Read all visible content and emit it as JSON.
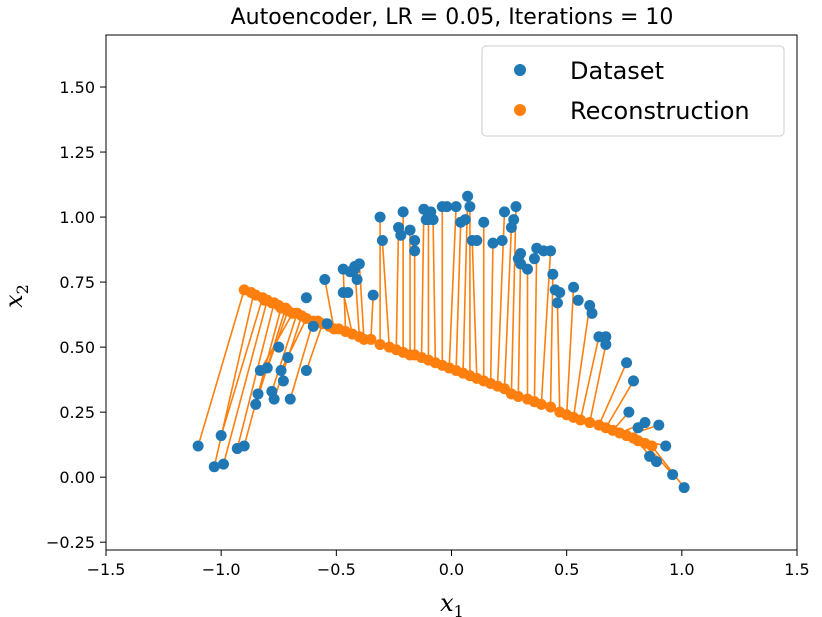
{
  "chart_data": {
    "type": "scatter",
    "title": "Autoencoder, LR = 0.05, Iterations = 10",
    "xlabel": "x",
    "xlabel_sub": "1",
    "ylabel": "x",
    "ylabel_sub": "2",
    "xlim": [
      -1.5,
      1.5
    ],
    "ylim": [
      -0.28,
      1.7
    ],
    "xticks": [
      -1.5,
      -1.0,
      -0.5,
      0.0,
      0.5,
      1.0,
      1.5
    ],
    "xtick_labels": [
      "−1.5",
      "−1.0",
      "−0.5",
      "0.0",
      "0.5",
      "1.0",
      "1.5"
    ],
    "yticks": [
      -0.25,
      0.0,
      0.25,
      0.5,
      0.75,
      1.0,
      1.25,
      1.5
    ],
    "ytick_labels": [
      "−0.25",
      "0.00",
      "0.25",
      "0.50",
      "0.75",
      "1.00",
      "1.25",
      "1.50"
    ],
    "grid": false,
    "legend_position": "top-right",
    "colors": {
      "dataset": "#1f77b4",
      "reconstruction": "#ff7f0e",
      "connector": "#ff7f0e"
    },
    "series": [
      {
        "name": "Dataset",
        "points": [
          [
            -1.1,
            0.12
          ],
          [
            -1.03,
            0.04
          ],
          [
            -1.0,
            0.16
          ],
          [
            -0.99,
            0.05
          ],
          [
            -0.93,
            0.11
          ],
          [
            -0.9,
            0.12
          ],
          [
            -0.85,
            0.28
          ],
          [
            -0.84,
            0.32
          ],
          [
            -0.83,
            0.41
          ],
          [
            -0.8,
            0.42
          ],
          [
            -0.78,
            0.33
          ],
          [
            -0.77,
            0.3
          ],
          [
            -0.75,
            0.5
          ],
          [
            -0.74,
            0.41
          ],
          [
            -0.73,
            0.37
          ],
          [
            -0.71,
            0.46
          ],
          [
            -0.7,
            0.3
          ],
          [
            -0.63,
            0.41
          ],
          [
            -0.63,
            0.69
          ],
          [
            -0.6,
            0.58
          ],
          [
            -0.55,
            0.76
          ],
          [
            -0.54,
            0.59
          ],
          [
            -0.47,
            0.8
          ],
          [
            -0.47,
            0.71
          ],
          [
            -0.45,
            0.71
          ],
          [
            -0.44,
            0.79
          ],
          [
            -0.42,
            0.81
          ],
          [
            -0.42,
            0.8
          ],
          [
            -0.41,
            0.76
          ],
          [
            -0.4,
            0.82
          ],
          [
            -0.34,
            0.7
          ],
          [
            -0.31,
            1.0
          ],
          [
            -0.3,
            0.91
          ],
          [
            -0.23,
            0.96
          ],
          [
            -0.22,
            0.93
          ],
          [
            -0.21,
            1.02
          ],
          [
            -0.18,
            0.95
          ],
          [
            -0.16,
            0.87
          ],
          [
            -0.16,
            0.91
          ],
          [
            -0.12,
            1.03
          ],
          [
            -0.11,
            0.99
          ],
          [
            -0.1,
            0.99
          ],
          [
            -0.09,
            1.02
          ],
          [
            -0.08,
            0.99
          ],
          [
            -0.04,
            1.04
          ],
          [
            -0.02,
            1.04
          ],
          [
            0.02,
            1.04
          ],
          [
            0.04,
            0.98
          ],
          [
            0.06,
            0.99
          ],
          [
            0.07,
            1.08
          ],
          [
            0.08,
            1.04
          ],
          [
            0.09,
            0.91
          ],
          [
            0.11,
            0.91
          ],
          [
            0.14,
            0.98
          ],
          [
            0.18,
            0.9
          ],
          [
            0.22,
            0.91
          ],
          [
            0.23,
            1.02
          ],
          [
            0.26,
            0.96
          ],
          [
            0.27,
            0.99
          ],
          [
            0.28,
            1.04
          ],
          [
            0.29,
            0.84
          ],
          [
            0.3,
            0.86
          ],
          [
            0.3,
            0.82
          ],
          [
            0.33,
            0.8
          ],
          [
            0.36,
            0.84
          ],
          [
            0.37,
            0.88
          ],
          [
            0.4,
            0.87
          ],
          [
            0.43,
            0.87
          ],
          [
            0.44,
            0.78
          ],
          [
            0.45,
            0.72
          ],
          [
            0.46,
            0.67
          ],
          [
            0.47,
            0.71
          ],
          [
            0.53,
            0.73
          ],
          [
            0.55,
            0.68
          ],
          [
            0.6,
            0.66
          ],
          [
            0.61,
            0.63
          ],
          [
            0.64,
            0.54
          ],
          [
            0.67,
            0.54
          ],
          [
            0.67,
            0.51
          ],
          [
            0.76,
            0.44
          ],
          [
            0.79,
            0.37
          ],
          [
            0.77,
            0.25
          ],
          [
            0.81,
            0.19
          ],
          [
            0.84,
            0.21
          ],
          [
            0.86,
            0.08
          ],
          [
            0.89,
            0.06
          ],
          [
            0.9,
            0.2
          ],
          [
            0.93,
            0.12
          ],
          [
            0.96,
            0.01
          ],
          [
            1.01,
            -0.04
          ]
        ]
      },
      {
        "name": "Reconstruction",
        "points": [
          [
            -0.9,
            0.72
          ],
          [
            -0.87,
            0.71
          ],
          [
            -0.85,
            0.7
          ],
          [
            -0.82,
            0.69
          ],
          [
            -0.81,
            0.68
          ],
          [
            -0.8,
            0.68
          ],
          [
            -0.78,
            0.67
          ],
          [
            -0.77,
            0.67
          ],
          [
            -0.75,
            0.66
          ],
          [
            -0.74,
            0.65
          ],
          [
            -0.72,
            0.65
          ],
          [
            -0.71,
            0.64
          ],
          [
            -0.69,
            0.63
          ],
          [
            -0.67,
            0.63
          ],
          [
            -0.65,
            0.62
          ],
          [
            -0.63,
            0.61
          ],
          [
            -0.6,
            0.6
          ],
          [
            -0.58,
            0.6
          ],
          [
            -0.56,
            0.59
          ],
          [
            -0.53,
            0.58
          ],
          [
            -0.51,
            0.57
          ],
          [
            -0.49,
            0.57
          ],
          [
            -0.46,
            0.56
          ],
          [
            -0.43,
            0.55
          ],
          [
            -0.4,
            0.54
          ],
          [
            -0.38,
            0.53
          ],
          [
            -0.35,
            0.53
          ],
          [
            -0.31,
            0.51
          ],
          [
            -0.27,
            0.5
          ],
          [
            -0.24,
            0.49
          ],
          [
            -0.21,
            0.48
          ],
          [
            -0.18,
            0.47
          ],
          [
            -0.16,
            0.47
          ],
          [
            -0.13,
            0.46
          ],
          [
            -0.1,
            0.45
          ],
          [
            -0.07,
            0.44
          ],
          [
            -0.04,
            0.43
          ],
          [
            -0.01,
            0.42
          ],
          [
            0.02,
            0.41
          ],
          [
            0.05,
            0.4
          ],
          [
            0.08,
            0.39
          ],
          [
            0.11,
            0.38
          ],
          [
            0.14,
            0.37
          ],
          [
            0.17,
            0.36
          ],
          [
            0.2,
            0.35
          ],
          [
            0.23,
            0.34
          ],
          [
            0.26,
            0.32
          ],
          [
            0.29,
            0.31
          ],
          [
            0.33,
            0.3
          ],
          [
            0.36,
            0.29
          ],
          [
            0.39,
            0.28
          ],
          [
            0.43,
            0.27
          ],
          [
            0.47,
            0.25
          ],
          [
            0.5,
            0.24
          ],
          [
            0.53,
            0.23
          ],
          [
            0.56,
            0.22
          ],
          [
            0.6,
            0.21
          ],
          [
            0.64,
            0.2
          ],
          [
            0.67,
            0.19
          ],
          [
            0.7,
            0.18
          ],
          [
            0.73,
            0.17
          ],
          [
            0.76,
            0.16
          ],
          [
            0.79,
            0.15
          ],
          [
            0.81,
            0.14
          ],
          [
            0.84,
            0.13
          ],
          [
            0.87,
            0.12
          ]
        ]
      }
    ],
    "connections": [
      [
        [
          -1.1,
          0.12
        ],
        [
          -0.9,
          0.72
        ]
      ],
      [
        [
          -1.03,
          0.04
        ],
        [
          -0.86,
          0.7
        ]
      ],
      [
        [
          -1.0,
          0.16
        ],
        [
          -0.82,
          0.69
        ]
      ],
      [
        [
          -0.99,
          0.05
        ],
        [
          -0.8,
          0.68
        ]
      ],
      [
        [
          -0.93,
          0.11
        ],
        [
          -0.77,
          0.67
        ]
      ],
      [
        [
          -0.9,
          0.12
        ],
        [
          -0.74,
          0.65
        ]
      ],
      [
        [
          -0.85,
          0.28
        ],
        [
          -0.72,
          0.65
        ]
      ],
      [
        [
          -0.84,
          0.32
        ],
        [
          -0.71,
          0.64
        ]
      ],
      [
        [
          -0.83,
          0.41
        ],
        [
          -0.69,
          0.63
        ]
      ],
      [
        [
          -0.78,
          0.33
        ],
        [
          -0.67,
          0.63
        ]
      ],
      [
        [
          -0.77,
          0.3
        ],
        [
          -0.65,
          0.62
        ]
      ],
      [
        [
          -0.74,
          0.41
        ],
        [
          -0.63,
          0.61
        ]
      ],
      [
        [
          -0.7,
          0.3
        ],
        [
          -0.6,
          0.6
        ]
      ],
      [
        [
          -0.63,
          0.41
        ],
        [
          -0.56,
          0.59
        ]
      ],
      [
        [
          -0.6,
          0.58
        ],
        [
          -0.53,
          0.58
        ]
      ],
      [
        [
          -0.55,
          0.76
        ],
        [
          -0.51,
          0.57
        ]
      ],
      [
        [
          -0.47,
          0.8
        ],
        [
          -0.46,
          0.56
        ]
      ],
      [
        [
          -0.47,
          0.71
        ],
        [
          -0.43,
          0.55
        ]
      ],
      [
        [
          -0.42,
          0.81
        ],
        [
          -0.4,
          0.54
        ]
      ],
      [
        [
          -0.4,
          0.82
        ],
        [
          -0.38,
          0.53
        ]
      ],
      [
        [
          -0.34,
          0.7
        ],
        [
          -0.35,
          0.53
        ]
      ],
      [
        [
          -0.31,
          1.0
        ],
        [
          -0.31,
          0.51
        ]
      ],
      [
        [
          -0.3,
          0.91
        ],
        [
          -0.27,
          0.5
        ]
      ],
      [
        [
          -0.23,
          0.96
        ],
        [
          -0.24,
          0.49
        ]
      ],
      [
        [
          -0.21,
          1.02
        ],
        [
          -0.21,
          0.48
        ]
      ],
      [
        [
          -0.18,
          0.95
        ],
        [
          -0.18,
          0.47
        ]
      ],
      [
        [
          -0.16,
          0.87
        ],
        [
          -0.16,
          0.47
        ]
      ],
      [
        [
          -0.12,
          1.03
        ],
        [
          -0.13,
          0.46
        ]
      ],
      [
        [
          -0.1,
          0.99
        ],
        [
          -0.1,
          0.45
        ]
      ],
      [
        [
          -0.08,
          0.99
        ],
        [
          -0.07,
          0.44
        ]
      ],
      [
        [
          -0.04,
          1.04
        ],
        [
          -0.04,
          0.43
        ]
      ],
      [
        [
          0.02,
          1.04
        ],
        [
          -0.01,
          0.42
        ]
      ],
      [
        [
          0.04,
          0.98
        ],
        [
          0.02,
          0.41
        ]
      ],
      [
        [
          0.07,
          1.08
        ],
        [
          0.05,
          0.4
        ]
      ],
      [
        [
          0.08,
          1.04
        ],
        [
          0.08,
          0.39
        ]
      ],
      [
        [
          0.09,
          0.91
        ],
        [
          0.11,
          0.38
        ]
      ],
      [
        [
          0.14,
          0.98
        ],
        [
          0.14,
          0.37
        ]
      ],
      [
        [
          0.18,
          0.9
        ],
        [
          0.17,
          0.36
        ]
      ],
      [
        [
          0.23,
          1.02
        ],
        [
          0.2,
          0.35
        ]
      ],
      [
        [
          0.26,
          0.96
        ],
        [
          0.23,
          0.34
        ]
      ],
      [
        [
          0.28,
          1.04
        ],
        [
          0.26,
          0.32
        ]
      ],
      [
        [
          0.3,
          0.86
        ],
        [
          0.29,
          0.31
        ]
      ],
      [
        [
          0.33,
          0.8
        ],
        [
          0.33,
          0.3
        ]
      ],
      [
        [
          0.37,
          0.88
        ],
        [
          0.36,
          0.29
        ]
      ],
      [
        [
          0.43,
          0.87
        ],
        [
          0.39,
          0.28
        ]
      ],
      [
        [
          0.44,
          0.78
        ],
        [
          0.43,
          0.27
        ]
      ],
      [
        [
          0.46,
          0.67
        ],
        [
          0.47,
          0.25
        ]
      ],
      [
        [
          0.53,
          0.73
        ],
        [
          0.5,
          0.24
        ]
      ],
      [
        [
          0.6,
          0.66
        ],
        [
          0.53,
          0.23
        ]
      ],
      [
        [
          0.64,
          0.54
        ],
        [
          0.56,
          0.22
        ]
      ],
      [
        [
          0.67,
          0.51
        ],
        [
          0.6,
          0.21
        ]
      ],
      [
        [
          0.76,
          0.44
        ],
        [
          0.64,
          0.2
        ]
      ],
      [
        [
          0.79,
          0.37
        ],
        [
          0.67,
          0.19
        ]
      ],
      [
        [
          0.77,
          0.25
        ],
        [
          0.7,
          0.18
        ]
      ],
      [
        [
          0.84,
          0.21
        ],
        [
          0.73,
          0.17
        ]
      ],
      [
        [
          0.9,
          0.2
        ],
        [
          0.76,
          0.16
        ]
      ],
      [
        [
          0.93,
          0.12
        ],
        [
          0.79,
          0.15
        ]
      ],
      [
        [
          0.86,
          0.08
        ],
        [
          0.81,
          0.14
        ]
      ],
      [
        [
          0.96,
          0.01
        ],
        [
          0.84,
          0.13
        ]
      ],
      [
        [
          1.01,
          -0.04
        ],
        [
          0.87,
          0.12
        ]
      ]
    ]
  }
}
